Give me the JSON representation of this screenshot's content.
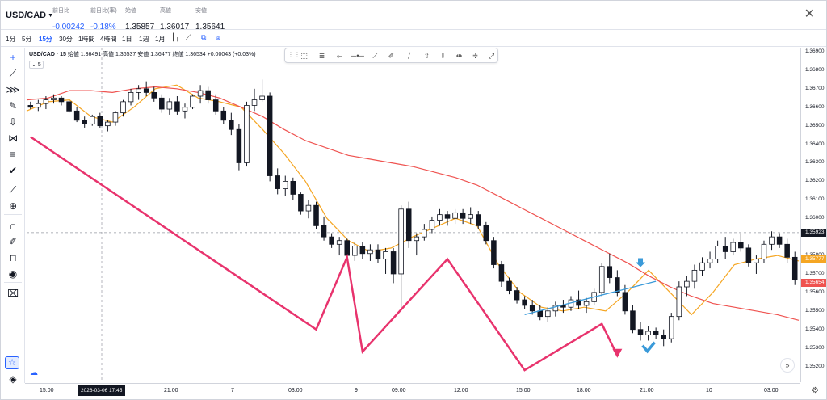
{
  "header": {
    "symbol": "USD/CAD",
    "stats": [
      {
        "label": "前日比",
        "value": "-0.00242",
        "neg": true
      },
      {
        "label": "前日比(率)",
        "value": "-0.18%",
        "neg": true
      },
      {
        "label": "始値",
        "value": "1.35857",
        "neg": false
      },
      {
        "label": "高値",
        "value": "1.36017",
        "neg": false
      },
      {
        "label": "安値",
        "value": "1.35641",
        "neg": false
      }
    ]
  },
  "timeframes": [
    "1分",
    "5分",
    "15分",
    "30分",
    "1時間",
    "4時間",
    "1日",
    "1週",
    "1月"
  ],
  "active_timeframe": "15分",
  "legend": {
    "symbol_interval": "USD/CAD · 15",
    "ohlc": "始値 1.36491  高値 1.36537  安値 1.36477  終値 1.36534  +0.00043 (+0.03%)",
    "ma_label": "5"
  },
  "price_axis": {
    "labels": [
      "1.36900",
      "1.36800",
      "1.36700",
      "1.36600",
      "1.36500",
      "1.36400",
      "1.36300",
      "1.36200",
      "1.36100",
      "1.36000",
      "1.35800",
      "1.35700",
      "1.35600",
      "1.35500",
      "1.35400",
      "1.35300",
      "1.35200"
    ],
    "tags": [
      {
        "text": "1.35923",
        "color": "#131722"
      },
      {
        "text": "1.35777",
        "color": "#f5a623"
      },
      {
        "text": "1.35654",
        "color": "#ef5350"
      }
    ]
  },
  "time_axis": {
    "labels": [
      "15:00",
      "21:00",
      "7",
      "03:00",
      "9",
      "09:00",
      "12:00",
      "15:00",
      "18:00",
      "21:00",
      "10",
      "03:00"
    ],
    "cursor_label": "2026-03-06   17:45"
  },
  "chart_data": {
    "type": "candlestick",
    "title": "",
    "ylim": [
      1.3515,
      1.3695
    ],
    "series": [
      {
        "name": "5",
        "color": "#f5a623",
        "values": [
          1.3658,
          1.3663,
          1.3664,
          1.3655,
          1.3652,
          1.366,
          1.367,
          1.3672,
          1.3665,
          1.3663,
          1.366,
          1.3648,
          1.3635,
          1.362,
          1.36,
          1.3588,
          1.3582,
          1.3584,
          1.359,
          1.3595,
          1.36,
          1.3596,
          1.3575,
          1.356,
          1.3552,
          1.355,
          1.3552,
          1.355,
          1.356,
          1.3572,
          1.356,
          1.3548,
          1.356,
          1.3575,
          1.3578,
          1.358,
          1.3577
        ]
      },
      {
        "name": "MA (long)",
        "color": "#ef5350",
        "values": [
          1.3664,
          1.3665,
          1.3669,
          1.3669,
          1.3668,
          1.367,
          1.3671,
          1.367,
          1.3668,
          1.3665,
          1.366,
          1.3655,
          1.3648,
          1.3642,
          1.3638,
          1.3634,
          1.3632,
          1.363,
          1.3628,
          1.3625,
          1.3622,
          1.3618,
          1.3612,
          1.3606,
          1.36,
          1.3594,
          1.3588,
          1.3582,
          1.3576,
          1.3569,
          1.3563,
          1.3558,
          1.3554,
          1.3552,
          1.355,
          1.3548,
          1.3545
        ]
      }
    ],
    "candles": [
      [
        1.3661,
        1.3663,
        1.3659,
        1.366
      ],
      [
        1.366,
        1.3664,
        1.3658,
        1.3662
      ],
      [
        1.3662,
        1.3666,
        1.3659,
        1.3664
      ],
      [
        1.3664,
        1.3667,
        1.3662,
        1.3665
      ],
      [
        1.3665,
        1.3666,
        1.3661,
        1.3663
      ],
      [
        1.3663,
        1.3664,
        1.3657,
        1.3658
      ],
      [
        1.3658,
        1.366,
        1.3652,
        1.3653
      ],
      [
        1.3653,
        1.3655,
        1.3649,
        1.3651
      ],
      [
        1.3651,
        1.3656,
        1.365,
        1.3655
      ],
      [
        1.3655,
        1.3657,
        1.3649,
        1.365
      ],
      [
        1.365,
        1.3653,
        1.3647,
        1.3652
      ],
      [
        1.3652,
        1.3658,
        1.365,
        1.3657
      ],
      [
        1.3657,
        1.3664,
        1.3655,
        1.3663
      ],
      [
        1.3663,
        1.367,
        1.3661,
        1.3668
      ],
      [
        1.3668,
        1.3672,
        1.3664,
        1.367
      ],
      [
        1.367,
        1.3674,
        1.3666,
        1.3668
      ],
      [
        1.3668,
        1.3671,
        1.3663,
        1.3665
      ],
      [
        1.3665,
        1.3667,
        1.3657,
        1.3659
      ],
      [
        1.3659,
        1.3665,
        1.3656,
        1.3663
      ],
      [
        1.3663,
        1.3666,
        1.3656,
        1.3658
      ],
      [
        1.3658,
        1.3662,
        1.3654,
        1.366
      ],
      [
        1.366,
        1.3667,
        1.3659,
        1.3666
      ],
      [
        1.3666,
        1.3672,
        1.3662,
        1.3669
      ],
      [
        1.3669,
        1.3671,
        1.3662,
        1.3664
      ],
      [
        1.3664,
        1.3667,
        1.3656,
        1.3658
      ],
      [
        1.3658,
        1.366,
        1.3651,
        1.3653
      ],
      [
        1.3653,
        1.3657,
        1.3645,
        1.3648
      ],
      [
        1.3648,
        1.3651,
        1.3626,
        1.363
      ],
      [
        1.363,
        1.3663,
        1.3628,
        1.3661
      ],
      [
        1.3661,
        1.367,
        1.3658,
        1.3664
      ],
      [
        1.3664,
        1.3675,
        1.3663,
        1.3666
      ],
      [
        1.3666,
        1.3668,
        1.362,
        1.3623
      ],
      [
        1.3623,
        1.3627,
        1.3613,
        1.3616
      ],
      [
        1.3616,
        1.3623,
        1.3612,
        1.362
      ],
      [
        1.362,
        1.3622,
        1.361,
        1.3613
      ],
      [
        1.3613,
        1.3614,
        1.3602,
        1.3604
      ],
      [
        1.3604,
        1.361,
        1.36,
        1.3607
      ],
      [
        1.3607,
        1.3609,
        1.3594,
        1.3596
      ],
      [
        1.3596,
        1.3601,
        1.3588,
        1.359
      ],
      [
        1.359,
        1.3592,
        1.3584,
        1.3586
      ],
      [
        1.3586,
        1.359,
        1.358,
        1.3588
      ],
      [
        1.3588,
        1.3589,
        1.3578,
        1.358
      ],
      [
        1.358,
        1.3587,
        1.3577,
        1.3585
      ],
      [
        1.3585,
        1.3587,
        1.3578,
        1.3581
      ],
      [
        1.3581,
        1.3586,
        1.3577,
        1.3583
      ],
      [
        1.3583,
        1.3586,
        1.3576,
        1.3578
      ],
      [
        1.3578,
        1.3584,
        1.357,
        1.3582
      ],
      [
        1.3582,
        1.3584,
        1.3565,
        1.357
      ],
      [
        1.357,
        1.3607,
        1.3552,
        1.3605
      ],
      [
        1.3605,
        1.3609,
        1.3584,
        1.3588
      ],
      [
        1.3588,
        1.3592,
        1.358,
        1.359
      ],
      [
        1.359,
        1.3597,
        1.3588,
        1.3594
      ],
      [
        1.3594,
        1.3601,
        1.3592,
        1.3599
      ],
      [
        1.3599,
        1.3605,
        1.3596,
        1.3602
      ],
      [
        1.3602,
        1.3604,
        1.3596,
        1.36
      ],
      [
        1.36,
        1.3605,
        1.3597,
        1.3603
      ],
      [
        1.3603,
        1.3605,
        1.3597,
        1.36
      ],
      [
        1.36,
        1.3606,
        1.3597,
        1.3602
      ],
      [
        1.3602,
        1.3604,
        1.3594,
        1.3596
      ],
      [
        1.3596,
        1.3598,
        1.3586,
        1.3588
      ],
      [
        1.3588,
        1.359,
        1.3573,
        1.3575
      ],
      [
        1.3575,
        1.3577,
        1.3563,
        1.3566
      ],
      [
        1.3566,
        1.3568,
        1.3559,
        1.3561
      ],
      [
        1.3561,
        1.3563,
        1.3554,
        1.3556
      ],
      [
        1.3556,
        1.3558,
        1.3551,
        1.3553
      ],
      [
        1.3553,
        1.3556,
        1.3548,
        1.355
      ],
      [
        1.355,
        1.3553,
        1.3545,
        1.3547
      ],
      [
        1.3547,
        1.3552,
        1.3544,
        1.355
      ],
      [
        1.355,
        1.3555,
        1.3547,
        1.3553
      ],
      [
        1.3553,
        1.3556,
        1.3549,
        1.3552
      ],
      [
        1.3552,
        1.3558,
        1.355,
        1.3556
      ],
      [
        1.3556,
        1.3561,
        1.3551,
        1.3553
      ],
      [
        1.3553,
        1.3557,
        1.3549,
        1.3555
      ],
      [
        1.3555,
        1.3562,
        1.3553,
        1.356
      ],
      [
        1.356,
        1.3576,
        1.3558,
        1.3574
      ],
      [
        1.3574,
        1.3581,
        1.3565,
        1.3568
      ],
      [
        1.3568,
        1.3572,
        1.3558,
        1.356
      ],
      [
        1.356,
        1.3564,
        1.3548,
        1.355
      ],
      [
        1.355,
        1.3553,
        1.3538,
        1.354
      ],
      [
        1.354,
        1.3544,
        1.3534,
        1.3537
      ],
      [
        1.3537,
        1.3542,
        1.3534,
        1.3539
      ],
      [
        1.3539,
        1.3541,
        1.3535,
        1.3537
      ],
      [
        1.3537,
        1.354,
        1.3531,
        1.3535
      ],
      [
        1.3535,
        1.3549,
        1.3533,
        1.3547
      ],
      [
        1.3547,
        1.3566,
        1.3545,
        1.3563
      ],
      [
        1.3563,
        1.3569,
        1.3558,
        1.3566
      ],
      [
        1.3566,
        1.3575,
        1.3562,
        1.3572
      ],
      [
        1.3572,
        1.3579,
        1.3569,
        1.3576
      ],
      [
        1.3576,
        1.3582,
        1.3573,
        1.3578
      ],
      [
        1.3578,
        1.3588,
        1.3576,
        1.3585
      ],
      [
        1.3585,
        1.359,
        1.3578,
        1.3582
      ],
      [
        1.3582,
        1.3589,
        1.358,
        1.3587
      ],
      [
        1.3587,
        1.3592,
        1.3582,
        1.3584
      ],
      [
        1.3584,
        1.3586,
        1.3574,
        1.3576
      ],
      [
        1.3576,
        1.358,
        1.357,
        1.3578
      ],
      [
        1.3578,
        1.3588,
        1.3576,
        1.3586
      ],
      [
        1.3586,
        1.3593,
        1.3583,
        1.359
      ],
      [
        1.359,
        1.3592,
        1.3584,
        1.3586
      ],
      [
        1.3586,
        1.3589,
        1.3576,
        1.3579
      ],
      [
        1.3579,
        1.3582,
        1.3564,
        1.3567
      ]
    ],
    "annotations": [
      {
        "type": "zigzag",
        "color": "#e8336d",
        "points": [
          [
            0,
            1.3644
          ],
          [
            37,
            1.354
          ],
          [
            41,
            1.3579
          ],
          [
            43,
            1.3528
          ],
          [
            54,
            1.3578
          ],
          [
            64,
            1.3518
          ],
          [
            74,
            1.3543
          ],
          [
            76,
            1.3526
          ]
        ]
      },
      {
        "type": "trendline",
        "color": "#3a9ad9",
        "points": [
          [
            64,
            1.3548
          ],
          [
            81,
            1.3566
          ]
        ]
      },
      {
        "type": "arrow-down",
        "color": "#3a9ad9",
        "at": [
          79,
          1.3575
        ]
      },
      {
        "type": "check",
        "color": "#3a9ad9",
        "at": [
          80,
          1.353
        ]
      }
    ]
  }
}
